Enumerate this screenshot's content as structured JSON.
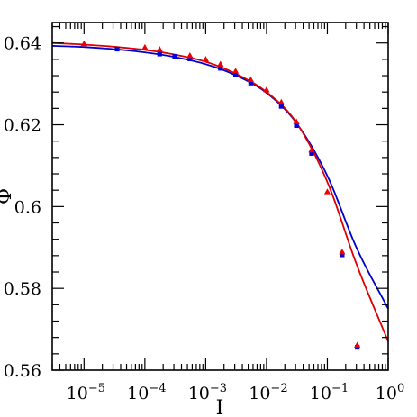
{
  "chart_data": {
    "type": "scatter",
    "xscale": "log",
    "xlabel": "I",
    "ylabel": "Φ",
    "xlim": [
      3e-06,
      1
    ],
    "ylim": [
      0.56,
      0.645
    ],
    "grid": false,
    "legend": "none",
    "x_tick_labels": [
      {
        "value": 1e-05,
        "base": "10",
        "exp": "−5"
      },
      {
        "value": 0.0001,
        "base": "10",
        "exp": "−4"
      },
      {
        "value": 0.001,
        "base": "10",
        "exp": "−3"
      },
      {
        "value": 0.01,
        "base": "10",
        "exp": "−2"
      },
      {
        "value": 0.1,
        "base": "10",
        "exp": "−1"
      },
      {
        "value": 1,
        "base": "10",
        "exp": "0"
      }
    ],
    "y_tick_labels": [
      {
        "value": 0.56,
        "label": "0.56"
      },
      {
        "value": 0.58,
        "label": "0.58"
      },
      {
        "value": 0.6,
        "label": "0.6"
      },
      {
        "value": 0.62,
        "label": "0.62"
      },
      {
        "value": 0.64,
        "label": "0.64"
      }
    ],
    "series": [
      {
        "marker": "square",
        "color": "#0000dd",
        "points": [
          {
            "x": 3.5e-05,
            "y": 0.6385
          },
          {
            "x": 0.000175,
            "y": 0.6373
          },
          {
            "x": 0.00031,
            "y": 0.6367
          },
          {
            "x": 0.00055,
            "y": 0.6361
          },
          {
            "x": 0.00175,
            "y": 0.6338
          },
          {
            "x": 0.0031,
            "y": 0.6322
          },
          {
            "x": 0.0055,
            "y": 0.6302
          },
          {
            "x": 0.0175,
            "y": 0.6245
          },
          {
            "x": 0.031,
            "y": 0.6198
          },
          {
            "x": 0.055,
            "y": 0.613
          },
          {
            "x": 0.175,
            "y": 0.5882
          },
          {
            "x": 0.31,
            "y": 0.5656
          }
        ]
      },
      {
        "marker": "triangle",
        "color": "#ee0000",
        "points": [
          {
            "x": 1e-05,
            "y": 0.6398
          },
          {
            "x": 0.0001,
            "y": 0.6389
          },
          {
            "x": 0.000175,
            "y": 0.6384
          },
          {
            "x": 0.00055,
            "y": 0.6369
          },
          {
            "x": 0.001,
            "y": 0.636
          },
          {
            "x": 0.00175,
            "y": 0.6348
          },
          {
            "x": 0.0031,
            "y": 0.6331
          },
          {
            "x": 0.0055,
            "y": 0.631
          },
          {
            "x": 0.01,
            "y": 0.6285
          },
          {
            "x": 0.0175,
            "y": 0.6255
          },
          {
            "x": 0.031,
            "y": 0.6207
          },
          {
            "x": 0.055,
            "y": 0.6138
          },
          {
            "x": 0.1,
            "y": 0.6036
          },
          {
            "x": 0.175,
            "y": 0.5889
          },
          {
            "x": 0.31,
            "y": 0.5661
          }
        ]
      }
    ],
    "curves": [
      {
        "color": "#0000cc",
        "points": [
          {
            "x": 3e-06,
            "y": 0.6393
          },
          {
            "x": 1e-05,
            "y": 0.639
          },
          {
            "x": 3e-05,
            "y": 0.6385
          },
          {
            "x": 0.0001,
            "y": 0.6377
          },
          {
            "x": 0.0003,
            "y": 0.6366
          },
          {
            "x": 0.001,
            "y": 0.6348
          },
          {
            "x": 0.003,
            "y": 0.6322
          },
          {
            "x": 0.01,
            "y": 0.6278
          },
          {
            "x": 0.03,
            "y": 0.6207
          },
          {
            "x": 0.1,
            "y": 0.6075
          },
          {
            "x": 0.3,
            "y": 0.59
          },
          {
            "x": 1,
            "y": 0.575
          }
        ]
      },
      {
        "color": "#dd0000",
        "points": [
          {
            "x": 3e-06,
            "y": 0.64
          },
          {
            "x": 1e-05,
            "y": 0.6396
          },
          {
            "x": 3e-05,
            "y": 0.6391
          },
          {
            "x": 0.0001,
            "y": 0.6383
          },
          {
            "x": 0.0003,
            "y": 0.6372
          },
          {
            "x": 0.001,
            "y": 0.6354
          },
          {
            "x": 0.003,
            "y": 0.6326
          },
          {
            "x": 0.01,
            "y": 0.628
          },
          {
            "x": 0.03,
            "y": 0.6208
          },
          {
            "x": 0.1,
            "y": 0.606
          },
          {
            "x": 0.3,
            "y": 0.586
          },
          {
            "x": 1,
            "y": 0.567
          }
        ]
      }
    ]
  }
}
